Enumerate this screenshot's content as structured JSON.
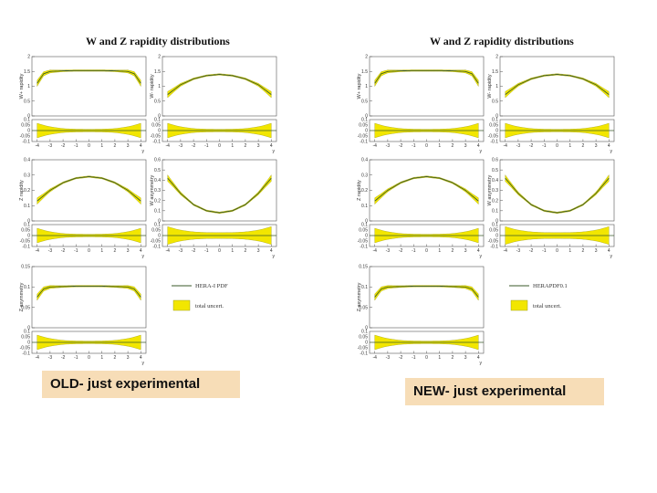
{
  "figures": [
    {
      "id": "old",
      "title": "W and Z rapidity distributions",
      "caption": "OLD- just experimental",
      "legend": {
        "line_label": "HERA-I PDF",
        "band_label": "total uncert."
      }
    },
    {
      "id": "new",
      "title": "W and Z rapidity distributions",
      "caption": "NEW- just experimental",
      "legend": {
        "line_label": "HERAPDF0.1",
        "band_label": "total uncert."
      }
    }
  ],
  "chart_data": [
    {
      "type": "line",
      "title": "W+ rapidity",
      "ylabel": "W+ rapidity",
      "xlabel": "y",
      "ylim": [
        0,
        2
      ],
      "yticks": [
        "2",
        "1.5",
        "1",
        "0.5",
        "0"
      ],
      "xticks": [
        "-4",
        "-3",
        "-2",
        "-1",
        "0",
        "1",
        "2",
        "3",
        "4"
      ],
      "x": [
        -4,
        -3.5,
        -3,
        -2,
        -1,
        0,
        1,
        2,
        3,
        3.5,
        4
      ],
      "values": [
        1.1,
        1.42,
        1.5,
        1.52,
        1.53,
        1.53,
        1.53,
        1.52,
        1.5,
        1.42,
        1.1
      ],
      "band": "total uncert."
    },
    {
      "type": "line",
      "title": "W- rapidity",
      "ylabel": "W- rapidity",
      "xlabel": "y",
      "ylim": [
        0,
        2
      ],
      "yticks": [
        "2",
        "1.5",
        "1",
        "0.5",
        "0"
      ],
      "xticks": [
        "-4",
        "-3",
        "-2",
        "-1",
        "0",
        "1",
        "2",
        "3",
        "4"
      ],
      "x": [
        -4,
        -3,
        -2,
        -1,
        0,
        1,
        2,
        3,
        4
      ],
      "values": [
        0.72,
        1.05,
        1.25,
        1.36,
        1.4,
        1.36,
        1.25,
        1.05,
        0.72
      ],
      "band": "total uncert."
    },
    {
      "type": "line",
      "title": "Z rapidity",
      "ylabel": "Z rapidity",
      "xlabel": "y",
      "ylim": [
        0,
        0.4
      ],
      "yticks": [
        "0.4",
        "0.3",
        "0.2",
        "0.1",
        "0"
      ],
      "xticks": [
        "-4",
        "-3",
        "-2",
        "-1",
        "0",
        "1",
        "2",
        "3",
        "4"
      ],
      "x": [
        -4,
        -3,
        -2,
        -1,
        0,
        1,
        2,
        3,
        4
      ],
      "values": [
        0.13,
        0.2,
        0.25,
        0.28,
        0.29,
        0.28,
        0.25,
        0.2,
        0.13
      ],
      "band": "total uncert."
    },
    {
      "type": "line",
      "title": "W asymmetry",
      "ylabel": "W asymmetry",
      "xlabel": "y",
      "ylim": [
        0,
        0.6
      ],
      "yticks": [
        "0.6",
        "0.5",
        "0.4",
        "0.3",
        "0.2",
        "0.1",
        "0"
      ],
      "xticks": [
        "-4",
        "-3",
        "-2",
        "-1",
        "0",
        "1",
        "2",
        "3",
        "4"
      ],
      "x": [
        -4,
        -3,
        -2,
        -1,
        0,
        1,
        2,
        3,
        4
      ],
      "values": [
        0.42,
        0.27,
        0.16,
        0.1,
        0.08,
        0.1,
        0.16,
        0.27,
        0.42
      ],
      "band": "total uncert."
    },
    {
      "type": "line",
      "title": "Z asymmetry",
      "ylabel": "Z asymmetry",
      "xlabel": "y",
      "ylim": [
        0,
        0.15
      ],
      "yticks": [
        "0.15",
        "0.1",
        "0.05",
        "0"
      ],
      "xticks": [
        "-4",
        "-3",
        "-2",
        "-1",
        "0",
        "1",
        "2",
        "3",
        "4"
      ],
      "x": [
        -4,
        -3.5,
        -3,
        -2,
        -1,
        0,
        1,
        2,
        3,
        3.5,
        4
      ],
      "values": [
        0.075,
        0.095,
        0.1,
        0.101,
        0.102,
        0.102,
        0.102,
        0.101,
        0.1,
        0.095,
        0.075
      ],
      "band": "total uncert."
    }
  ],
  "ratio_panels": {
    "ylabel": "",
    "yticks": [
      "0.1",
      "0.05",
      "0",
      "-0.05",
      "-0.1"
    ],
    "ylim": [
      -0.1,
      0.1
    ]
  }
}
